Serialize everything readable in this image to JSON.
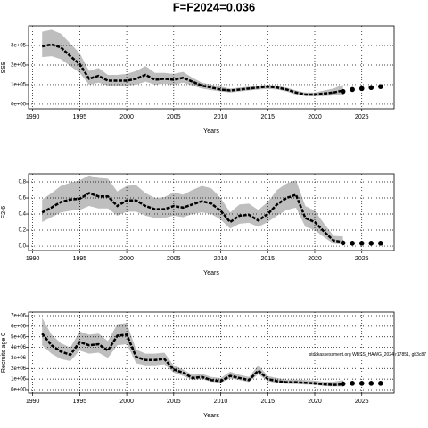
{
  "title": "F=F2024=0.036",
  "chart_data": [
    {
      "type": "line",
      "x_label": "Years",
      "y_label": "SSB",
      "x": [
        1991,
        1992,
        1993,
        1994,
        1995,
        1996,
        1997,
        1998,
        1999,
        2000,
        2001,
        2002,
        2003,
        2004,
        2005,
        2006,
        2007,
        2008,
        2009,
        2010,
        2011,
        2012,
        2013,
        2014,
        2015,
        2016,
        2017,
        2018,
        2019,
        2020,
        2021,
        2022,
        2023
      ],
      "series": [
        {
          "color": "#000000",
          "values": [
            295000,
            305000,
            290000,
            245000,
            205000,
            130000,
            145000,
            120000,
            120000,
            120000,
            130000,
            150000,
            125000,
            130000,
            125000,
            135000,
            115000,
            95000,
            85000,
            75000,
            70000,
            75000,
            80000,
            85000,
            90000,
            85000,
            75000,
            60000,
            50000,
            50000,
            55000,
            60000,
            70000
          ]
        }
      ],
      "interval": {
        "color": "#bebebe",
        "upper": [
          370000,
          380000,
          360000,
          310000,
          260000,
          170000,
          185000,
          150000,
          150000,
          155000,
          170000,
          195000,
          160000,
          160000,
          155000,
          165000,
          135000,
          110000,
          100000,
          90000,
          80000,
          85000,
          90000,
          95000,
          100000,
          95000,
          85000,
          70000,
          60000,
          60000,
          70000,
          80000,
          100000
        ],
        "lower": [
          240000,
          245000,
          230000,
          195000,
          160000,
          100000,
          110000,
          95000,
          95000,
          95000,
          100000,
          115000,
          100000,
          105000,
          100000,
          110000,
          95000,
          80000,
          72000,
          65000,
          60000,
          65000,
          70000,
          75000,
          78000,
          75000,
          65000,
          50000,
          42000,
          40000,
          42000,
          45000,
          50000
        ]
      },
      "projection": {
        "color": "#000000",
        "x": [
          2023,
          2024,
          2025,
          2026,
          2027
        ],
        "values": [
          65000,
          75000,
          80000,
          85000,
          90000
        ]
      },
      "xlim": [
        1989.56,
        2028.44
      ],
      "xticks": [
        1990,
        1995,
        2000,
        2005,
        2010,
        2015,
        2020,
        2025
      ],
      "ylim": [
        -23000,
        400000
      ],
      "yticks": [
        {
          "value": 0,
          "label": "0e+00"
        },
        {
          "value": 100000,
          "label": "1e+05"
        },
        {
          "value": 200000,
          "label": "2e+05"
        },
        {
          "value": 300000,
          "label": "3e+05"
        }
      ],
      "grid": true
    },
    {
      "type": "line",
      "x_label": "Years",
      "y_label": "F2-6",
      "x": [
        1991,
        1992,
        1993,
        1994,
        1995,
        1996,
        1997,
        1998,
        1999,
        2000,
        2001,
        2002,
        2003,
        2004,
        2005,
        2006,
        2007,
        2008,
        2009,
        2010,
        2011,
        2012,
        2013,
        2014,
        2015,
        2016,
        2017,
        2018,
        2019,
        2020,
        2021,
        2022,
        2023
      ],
      "series": [
        {
          "color": "#000000",
          "values": [
            0.42,
            0.48,
            0.55,
            0.58,
            0.59,
            0.66,
            0.62,
            0.62,
            0.5,
            0.57,
            0.57,
            0.5,
            0.46,
            0.46,
            0.5,
            0.48,
            0.52,
            0.56,
            0.53,
            0.44,
            0.3,
            0.38,
            0.39,
            0.32,
            0.4,
            0.52,
            0.6,
            0.64,
            0.35,
            0.3,
            0.18,
            0.07,
            0.05
          ]
        }
      ],
      "interval": {
        "color": "#bebebe",
        "upper": [
          0.58,
          0.66,
          0.75,
          0.79,
          0.82,
          0.88,
          0.85,
          0.84,
          0.68,
          0.75,
          0.76,
          0.66,
          0.6,
          0.61,
          0.67,
          0.64,
          0.7,
          0.75,
          0.72,
          0.6,
          0.42,
          0.52,
          0.53,
          0.45,
          0.55,
          0.7,
          0.78,
          0.82,
          0.5,
          0.44,
          0.28,
          0.13,
          0.12
        ],
        "lower": [
          0.3,
          0.36,
          0.42,
          0.44,
          0.45,
          0.5,
          0.47,
          0.47,
          0.38,
          0.43,
          0.43,
          0.38,
          0.35,
          0.35,
          0.38,
          0.36,
          0.4,
          0.42,
          0.4,
          0.33,
          0.22,
          0.28,
          0.29,
          0.24,
          0.3,
          0.38,
          0.45,
          0.48,
          0.24,
          0.2,
          0.11,
          0.03,
          0.02
        ]
      },
      "projection": {
        "color": "#000000",
        "x": [
          2023,
          2024,
          2025,
          2026,
          2027
        ],
        "values": [
          0.04,
          0.036,
          0.036,
          0.036,
          0.036
        ]
      },
      "xlim": [
        1989.56,
        2028.44
      ],
      "xticks": [
        1990,
        1995,
        2000,
        2005,
        2010,
        2015,
        2020,
        2025
      ],
      "ylim": [
        -0.055,
        0.9
      ],
      "yticks": [
        {
          "value": 0,
          "label": "0.0"
        },
        {
          "value": 0.2,
          "label": "0.2"
        },
        {
          "value": 0.4,
          "label": "0.4"
        },
        {
          "value": 0.6,
          "label": "0.6"
        },
        {
          "value": 0.8,
          "label": "0.8"
        }
      ],
      "grid": true
    },
    {
      "type": "line",
      "x_label": "Years",
      "y_label": "Recruits age 0",
      "annotation": "stockassessment.org WBSS_HAWG_2024 r17851, gb3c87",
      "x": [
        1991,
        1992,
        1993,
        1994,
        1995,
        1996,
        1997,
        1998,
        1999,
        2000,
        2001,
        2002,
        2003,
        2004,
        2005,
        2006,
        2007,
        2008,
        2009,
        2010,
        2011,
        2012,
        2013,
        2014,
        2015,
        2016,
        2017,
        2018,
        2019,
        2020,
        2021,
        2022,
        2023
      ],
      "series": [
        {
          "color": "#000000",
          "values": [
            5300000,
            4200000,
            3600000,
            3300000,
            4500000,
            4200000,
            4300000,
            3700000,
            5100000,
            5200000,
            3100000,
            2800000,
            2800000,
            2900000,
            1900000,
            1600000,
            1100000,
            1200000,
            900000,
            800000,
            1300000,
            1100000,
            900000,
            1800000,
            1000000,
            800000,
            700000,
            700000,
            650000,
            600000,
            500000,
            450000,
            500000
          ]
        }
      ],
      "interval": {
        "color": "#bebebe",
        "upper": [
          6800000,
          5200000,
          4400000,
          4000000,
          5500000,
          5200000,
          5300000,
          4600000,
          6200000,
          6300000,
          3800000,
          3400000,
          3400000,
          3500000,
          2300000,
          1900000,
          1400000,
          1500000,
          1200000,
          1100000,
          1700000,
          1400000,
          1200000,
          2300000,
          1300000,
          1100000,
          950000,
          950000,
          900000,
          850000,
          750000,
          750000,
          900000
        ],
        "lower": [
          4200000,
          3400000,
          2900000,
          2700000,
          3700000,
          3400000,
          3500000,
          3000000,
          4200000,
          4300000,
          2500000,
          2300000,
          2300000,
          2400000,
          1600000,
          1300000,
          900000,
          1000000,
          750000,
          650000,
          1050000,
          900000,
          720000,
          1450000,
          800000,
          620000,
          550000,
          520000,
          480000,
          450000,
          350000,
          300000,
          300000
        ]
      },
      "projection": {
        "color": "#000000",
        "x": [
          2023,
          2024,
          2025,
          2026,
          2027
        ],
        "values": [
          550000,
          600000,
          600000,
          600000,
          600000
        ]
      },
      "xlim": [
        1989.56,
        2028.44
      ],
      "xticks": [
        1990,
        1995,
        2000,
        2005,
        2010,
        2015,
        2020,
        2025
      ],
      "ylim": [
        -340000,
        7340000
      ],
      "yticks": [
        {
          "value": 0,
          "label": "0e+00"
        },
        {
          "value": 1000000,
          "label": "1e+06"
        },
        {
          "value": 2000000,
          "label": "2e+06"
        },
        {
          "value": 3000000,
          "label": "3e+06"
        },
        {
          "value": 4000000,
          "label": "4e+06"
        },
        {
          "value": 5000000,
          "label": "5e+06"
        },
        {
          "value": 6000000,
          "label": "6e+06"
        },
        {
          "value": 7000000,
          "label": "7e+06"
        }
      ],
      "grid": true
    }
  ]
}
